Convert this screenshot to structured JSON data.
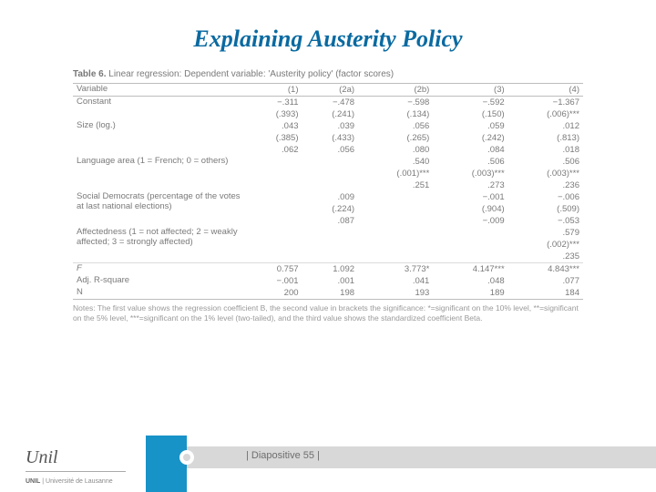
{
  "title": "Explaining Austerity Policy",
  "table": {
    "caption_prefix": "Table 6.",
    "caption_rest": " Linear regression: Dependent variable: 'Austerity policy' (factor scores)",
    "header_var": "Variable",
    "cols": [
      "(1)",
      "(2a)",
      "(2b)",
      "(3)",
      "(4)"
    ],
    "rows": [
      {
        "label": "Constant",
        "lines": [
          [
            "−.311",
            "−.478",
            "−.598",
            "−.592",
            "−1.367"
          ],
          [
            "(.393)",
            "(.241)",
            "(.134)",
            "(.150)",
            "(.006)***"
          ]
        ]
      },
      {
        "label": "Size (log.)",
        "lines": [
          [
            ".043",
            ".039",
            ".056",
            ".059",
            ".012"
          ],
          [
            "(.385)",
            "(.433)",
            "(.265)",
            "(.242)",
            "(.813)"
          ],
          [
            ".062",
            ".056",
            ".080",
            ".084",
            ".018"
          ]
        ]
      },
      {
        "label": "Language area\n(1 = French;\n0 = others)",
        "lines": [
          [
            "",
            "",
            ".540",
            ".506",
            ".506"
          ],
          [
            "",
            "",
            "(.001)***",
            "(.003)***",
            "(.003)***"
          ],
          [
            "",
            "",
            ".251",
            ".273",
            ".236"
          ]
        ]
      },
      {
        "label": "Social Democrats (percentage of the votes at last national elections)",
        "lines": [
          [
            "",
            ".009",
            "",
            "−.001",
            "−.006"
          ],
          [
            "",
            "(.224)",
            "",
            "(.904)",
            "(.509)"
          ],
          [
            "",
            ".087",
            "",
            "−.009",
            "−.053"
          ]
        ]
      },
      {
        "label": "Affectedness (1 = not affected; 2 = weakly affected; 3 = strongly affected)",
        "lines": [
          [
            "",
            "",
            "",
            "",
            ".579"
          ],
          [
            "",
            "",
            "",
            "",
            "(.002)***"
          ],
          [
            "",
            "",
            "",
            "",
            ".235"
          ]
        ]
      }
    ],
    "footer_rows": [
      {
        "label": "F",
        "vals": [
          "0.757",
          "1.092",
          "3.773*",
          "4.147***",
          "4.843***"
        ]
      },
      {
        "label": "Adj. R-square",
        "vals": [
          "−.001",
          ".001",
          ".041",
          ".048",
          ".077"
        ]
      },
      {
        "label": "N",
        "vals": [
          "200",
          "198",
          "193",
          "189",
          "184"
        ]
      }
    ],
    "notes": "Notes: The first value shows the regression coefficient B, the second value in brackets the significance: *=significant on the 10% level, **=significant on the 5% level, ***=significant on the 1% level (two-tailed), and the third value shows the standardized coefficient Beta."
  },
  "footer": {
    "page_label": "| Diapositive 55 |",
    "logo_text": "Unil",
    "sub_bold": "UNIL",
    "sub_rest": " | Université de Lausanne"
  },
  "colors": {
    "title": "#0a6aa1",
    "accent": "#1793c7",
    "footer_bar": "#d8d8d8",
    "text_muted": "#7a7a7a"
  }
}
